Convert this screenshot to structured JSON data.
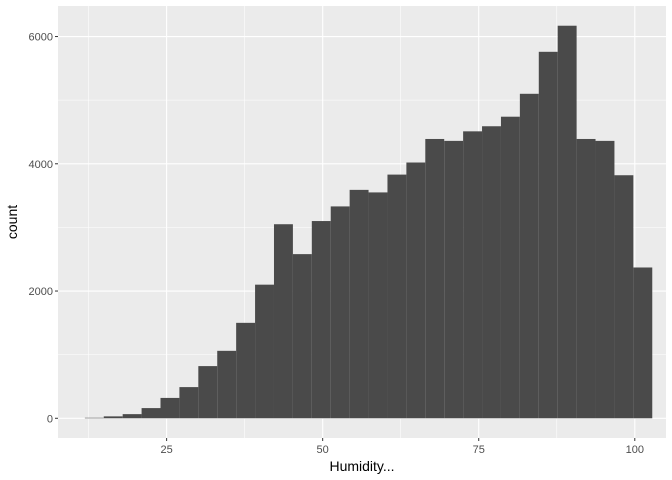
{
  "chart_data": {
    "type": "bar",
    "subtype": "histogram",
    "xlabel": "Humidity...",
    "ylabel": "count",
    "xlim": [
      7.6,
      105
    ],
    "ylim": [
      -310,
      6480
    ],
    "x_ticks": [
      25,
      50,
      75,
      100
    ],
    "x_tick_labels": [
      "25",
      "50",
      "75",
      "100"
    ],
    "y_ticks": [
      0,
      2000,
      4000,
      6000
    ],
    "y_tick_labels": [
      "0",
      "2000",
      "4000",
      "6000"
    ],
    "grid": true,
    "bin_width": 3.03,
    "bin_start": 11.9,
    "values": [
      8,
      30,
      65,
      160,
      320,
      490,
      820,
      1060,
      1500,
      2100,
      3050,
      2580,
      3100,
      3330,
      3590,
      3550,
      3830,
      4020,
      4390,
      4360,
      4510,
      4590,
      4740,
      5100,
      5760,
      6170,
      4390,
      4360,
      3820,
      2370
    ],
    "colors": {
      "panel": "#ebebeb",
      "grid": "#ffffff",
      "bar": "#4a4a4a",
      "tick": "#333333"
    }
  }
}
